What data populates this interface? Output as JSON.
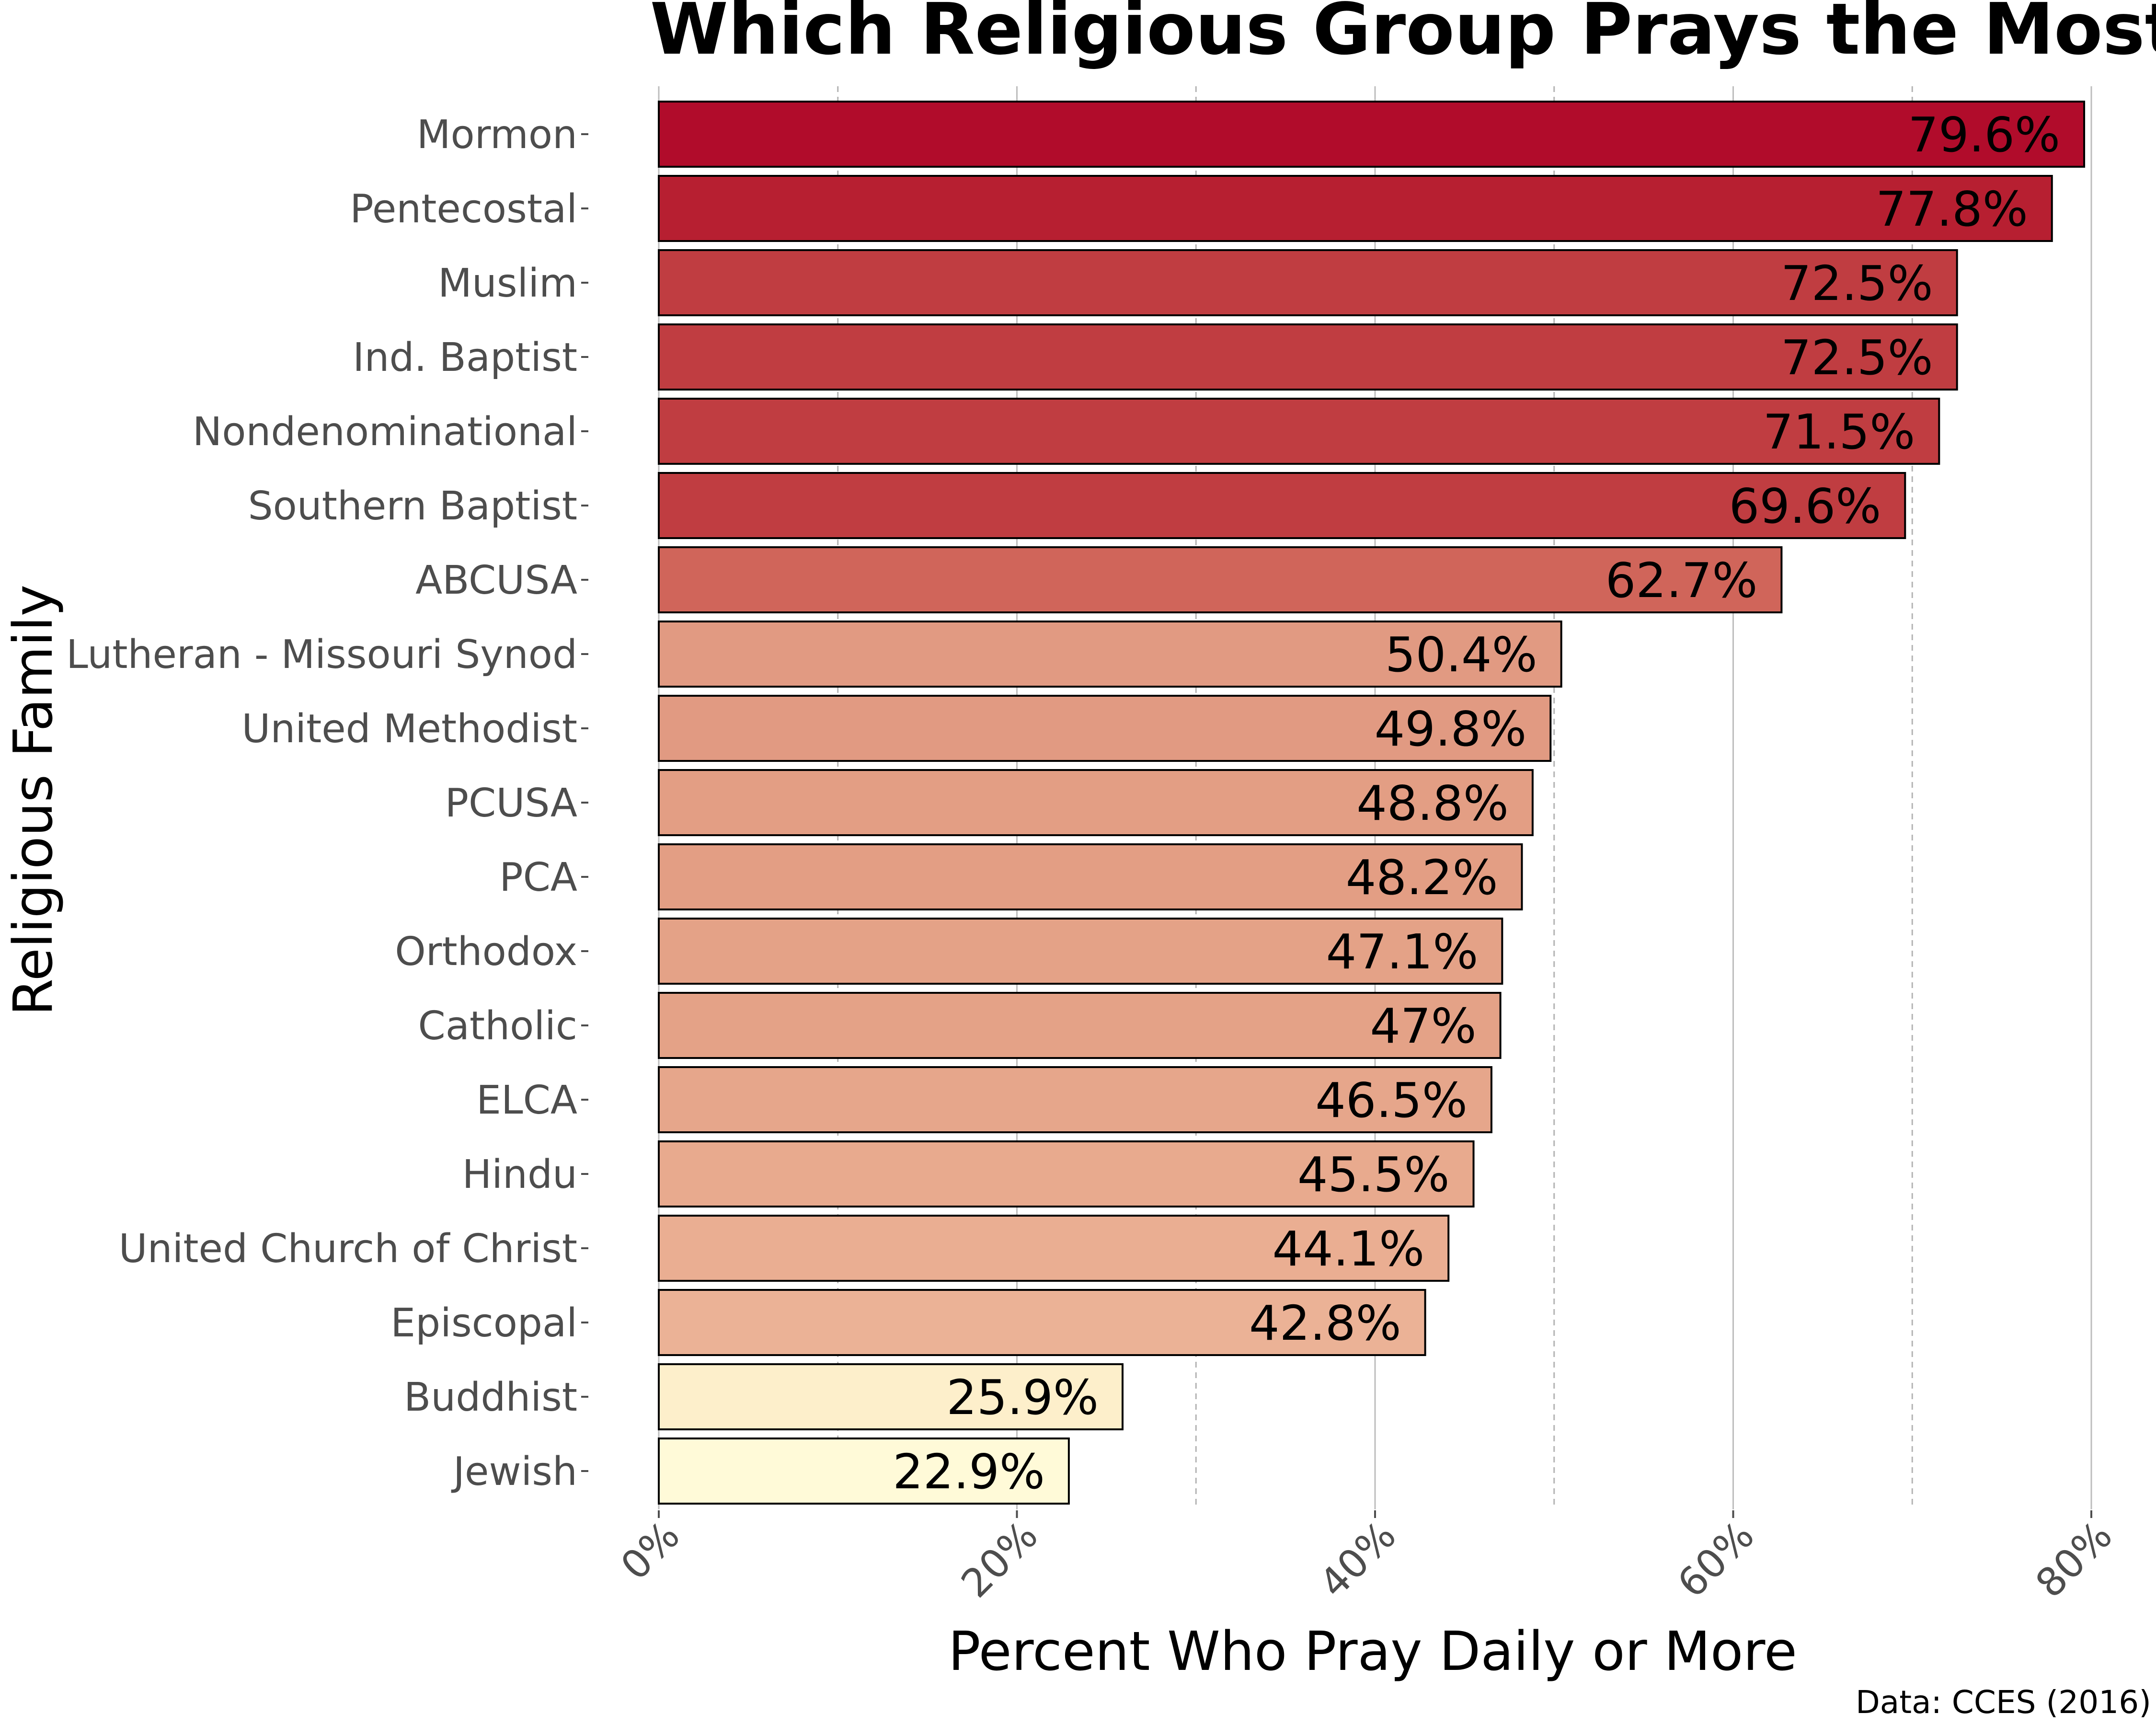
{
  "chart_data": {
    "type": "bar",
    "orientation": "horizontal",
    "title": "Which Religious Group Prays the Most?",
    "xlabel": "Percent Who Pray Daily or More",
    "ylabel": "Religious Family",
    "caption": "Data: CCES (2016)",
    "xlim": [
      0,
      80
    ],
    "x_ticks": [
      "0%",
      "20%",
      "40%",
      "60%",
      "80%"
    ],
    "grid": true,
    "legend": "none",
    "categories": [
      "Mormon",
      "Pentecostal",
      "Muslim",
      "Ind. Baptist",
      "Nondenominational",
      "Southern Baptist",
      "ABCUSA",
      "Lutheran - Missouri Synod",
      "United Methodist",
      "PCUSA",
      "PCA",
      "Orthodox",
      "Catholic",
      "ELCA",
      "Hindu",
      "United Church of Christ",
      "Episcopal",
      "Buddhist",
      "Jewish"
    ],
    "values": [
      79.6,
      77.8,
      72.5,
      72.5,
      71.5,
      69.6,
      62.7,
      50.4,
      49.8,
      48.8,
      48.2,
      47.1,
      47.0,
      46.5,
      45.5,
      44.1,
      42.8,
      25.9,
      22.9
    ],
    "value_labels": [
      "79.6%",
      "77.8%",
      "72.5%",
      "72.5%",
      "71.5%",
      "69.6%",
      "62.7%",
      "50.4%",
      "49.8%",
      "48.8%",
      "48.2%",
      "47.1%",
      "47%",
      "46.5%",
      "45.5%",
      "44.1%",
      "42.8%",
      "25.9%",
      "22.9%"
    ],
    "colors": [
      "#b10c2b",
      "#b71f31",
      "#c03d41",
      "#c03d41",
      "#c03d41",
      "#c03d41",
      "#d0655a",
      "#e19a82",
      "#e19a82",
      "#e39e84",
      "#e39e84",
      "#e4a287",
      "#e4a287",
      "#e6a68b",
      "#e8aa8e",
      "#eaae92",
      "#ebb296",
      "#fdefcb",
      "#fffad8"
    ]
  }
}
